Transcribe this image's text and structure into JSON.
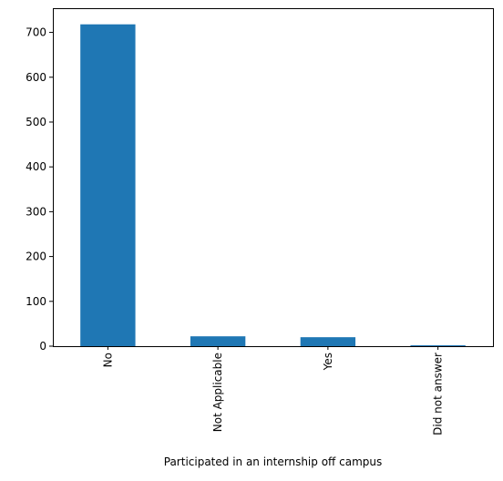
{
  "chart_data": {
    "type": "bar",
    "categories": [
      "No",
      "Not Applicable",
      "Yes",
      "Did not answer"
    ],
    "values": [
      718,
      22,
      20,
      2
    ],
    "title": "",
    "xlabel": "Participated in an internship off campus",
    "ylabel": "",
    "ylim": [
      0,
      754
    ],
    "yticks": [
      0,
      100,
      200,
      300,
      400,
      500,
      600,
      700
    ],
    "grid": false,
    "legend": "none",
    "bar_color": "#1f77b4"
  }
}
